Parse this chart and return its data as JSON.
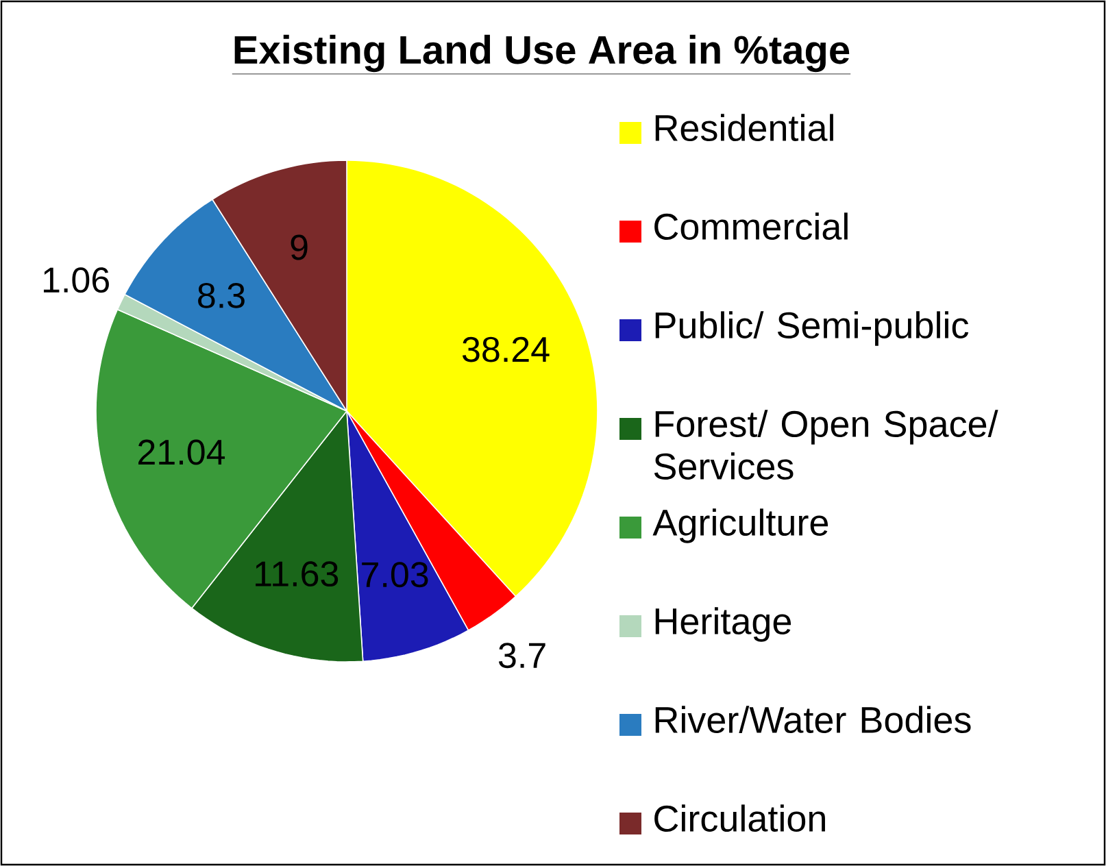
{
  "chart_data": {
    "type": "pie",
    "title": "Existing Land Use Area in %tage",
    "categories": [
      "Residential",
      "Commercial",
      "Public/  Semi-public",
      "Forest/ Open Space/ Services",
      "Agriculture",
      "Heritage",
      "River/Water Bodies",
      "Circulation"
    ],
    "values": [
      38.24,
      3.7,
      7.03,
      11.63,
      21.04,
      1.06,
      8.3,
      9
    ],
    "colors": [
      "#ffff00",
      "#ff0000",
      "#1c1cb4",
      "#1a661a",
      "#3a9a3a",
      "#b4d8bc",
      "#2a7cc0",
      "#7a2a2a"
    ],
    "data_labels": true,
    "legend": "right"
  }
}
